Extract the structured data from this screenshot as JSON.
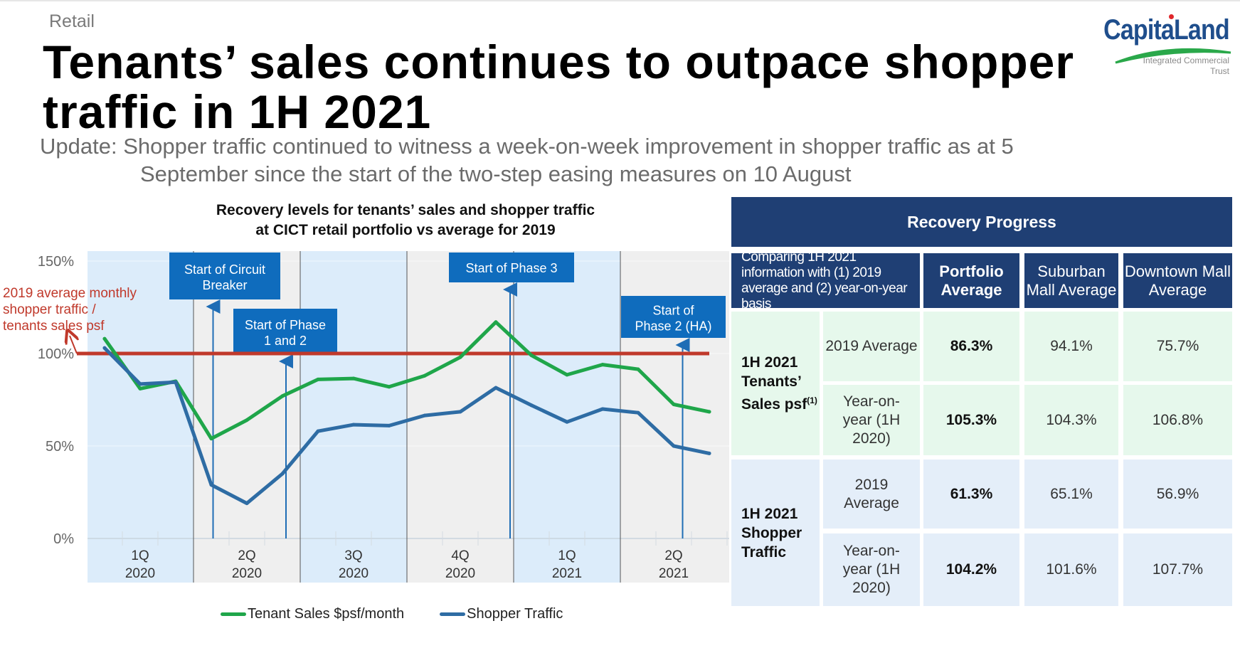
{
  "section_label": "Retail",
  "title": "Tenants’ sales continues to outpace shopper traffic in 1H 2021",
  "subtitle": {
    "line1": "Update: Shopper traffic continued to witness a week-on-week improvement in shopper traffic as at 5",
    "line2": "September since the start of the two-step easing measures on 10 August"
  },
  "logo": {
    "brand": "CapitaLand",
    "sub_line1": "Integrated Commercial",
    "sub_line2": "Trust"
  },
  "chart_data": {
    "type": "line",
    "title_line1": "Recovery levels for tenants’ sales and shopper traffic",
    "title_line2": "at CICT retail portfolio vs average for 2019",
    "x": [
      "Jan 2020",
      "Feb 2020",
      "Mar 2020",
      "Apr 2020",
      "May 2020",
      "Jun 2020",
      "Jul 2020",
      "Aug 2020",
      "Sep 2020",
      "Oct 2020",
      "Nov 2020",
      "Dec 2020",
      "Jan 2021",
      "Feb 2021",
      "Mar 2021",
      "Apr 2021",
      "May 2021",
      "Jun 2021"
    ],
    "quarters": [
      {
        "q": "1Q",
        "year": "2020"
      },
      {
        "q": "2Q",
        "year": "2020"
      },
      {
        "q": "3Q",
        "year": "2020"
      },
      {
        "q": "4Q",
        "year": "2020"
      },
      {
        "q": "1Q",
        "year": "2021"
      },
      {
        "q": "2Q",
        "year": "2021"
      }
    ],
    "series": [
      {
        "name": "Tenant Sales $psf/month",
        "color": "#1fa64a",
        "values": [
          108,
          81,
          85,
          54,
          64,
          77,
          86,
          86.5,
          82,
          88,
          98,
          117,
          99,
          88.5,
          94,
          91.5,
          72.5,
          68.5
        ]
      },
      {
        "name": "Shopper Traffic",
        "color": "#2e6ca4",
        "values": [
          103,
          83.5,
          84.5,
          29,
          19,
          35,
          58,
          61.5,
          61,
          66.5,
          68.5,
          81.5,
          72,
          63,
          70,
          68,
          50,
          46
        ]
      }
    ],
    "reference_line": {
      "value": 100,
      "color": "#c0392b",
      "label": "2019 average monthly shopper traffic / tenants sales psf"
    },
    "yticks": [
      "150%",
      "100%",
      "50%",
      "0%"
    ],
    "ytick_values": [
      150,
      100,
      50,
      0
    ],
    "ylim": [
      0,
      150
    ],
    "annotations": [
      {
        "label_line1": "Start of Circuit",
        "label_line2": "Breaker",
        "month_index": 3.05
      },
      {
        "label_line1": "Start of Phase",
        "label_line2": "1 and 2",
        "month_index": 5.1
      },
      {
        "label_line1": "Start of Phase 3",
        "label_line2": "",
        "month_index": 11.4
      },
      {
        "label_line1": "Start of",
        "label_line2": "Phase 2 (HA)",
        "month_index": 16.25
      }
    ],
    "legend_position": "bottom",
    "xlabel": "",
    "ylabel": ""
  },
  "legend": [
    {
      "label": "Tenant Sales $psf/month",
      "color": "#1fa64a"
    },
    {
      "label": "Shopper Traffic",
      "color": "#2e6ca4"
    }
  ],
  "recovery_table": {
    "title": "Recovery Progress",
    "header_desc": "Comparing 1H 2021 information with (1) 2019 average and (2) year-on-year basis",
    "columns": [
      "Portfolio Average",
      "Suburban Mall Average",
      "Downtown Mall Average"
    ],
    "groups": [
      {
        "label": "1H 2021 Tenants’ Sales psf",
        "footnote": "(1)",
        "rows": [
          {
            "label": "2019 Average",
            "values": [
              "86.3%",
              "94.1%",
              "75.7%"
            ]
          },
          {
            "label": "Year-on-year (1H 2020)",
            "values": [
              "105.3%",
              "104.3%",
              "106.8%"
            ]
          }
        ]
      },
      {
        "label": "1H 2021 Shopper Traffic",
        "footnote": "",
        "rows": [
          {
            "label": "2019 Average",
            "values": [
              "61.3%",
              "65.1%",
              "56.9%"
            ]
          },
          {
            "label": "Year-on-year (1H 2020)",
            "values": [
              "104.2%",
              "101.6%",
              "107.7%"
            ]
          }
        ]
      }
    ]
  }
}
